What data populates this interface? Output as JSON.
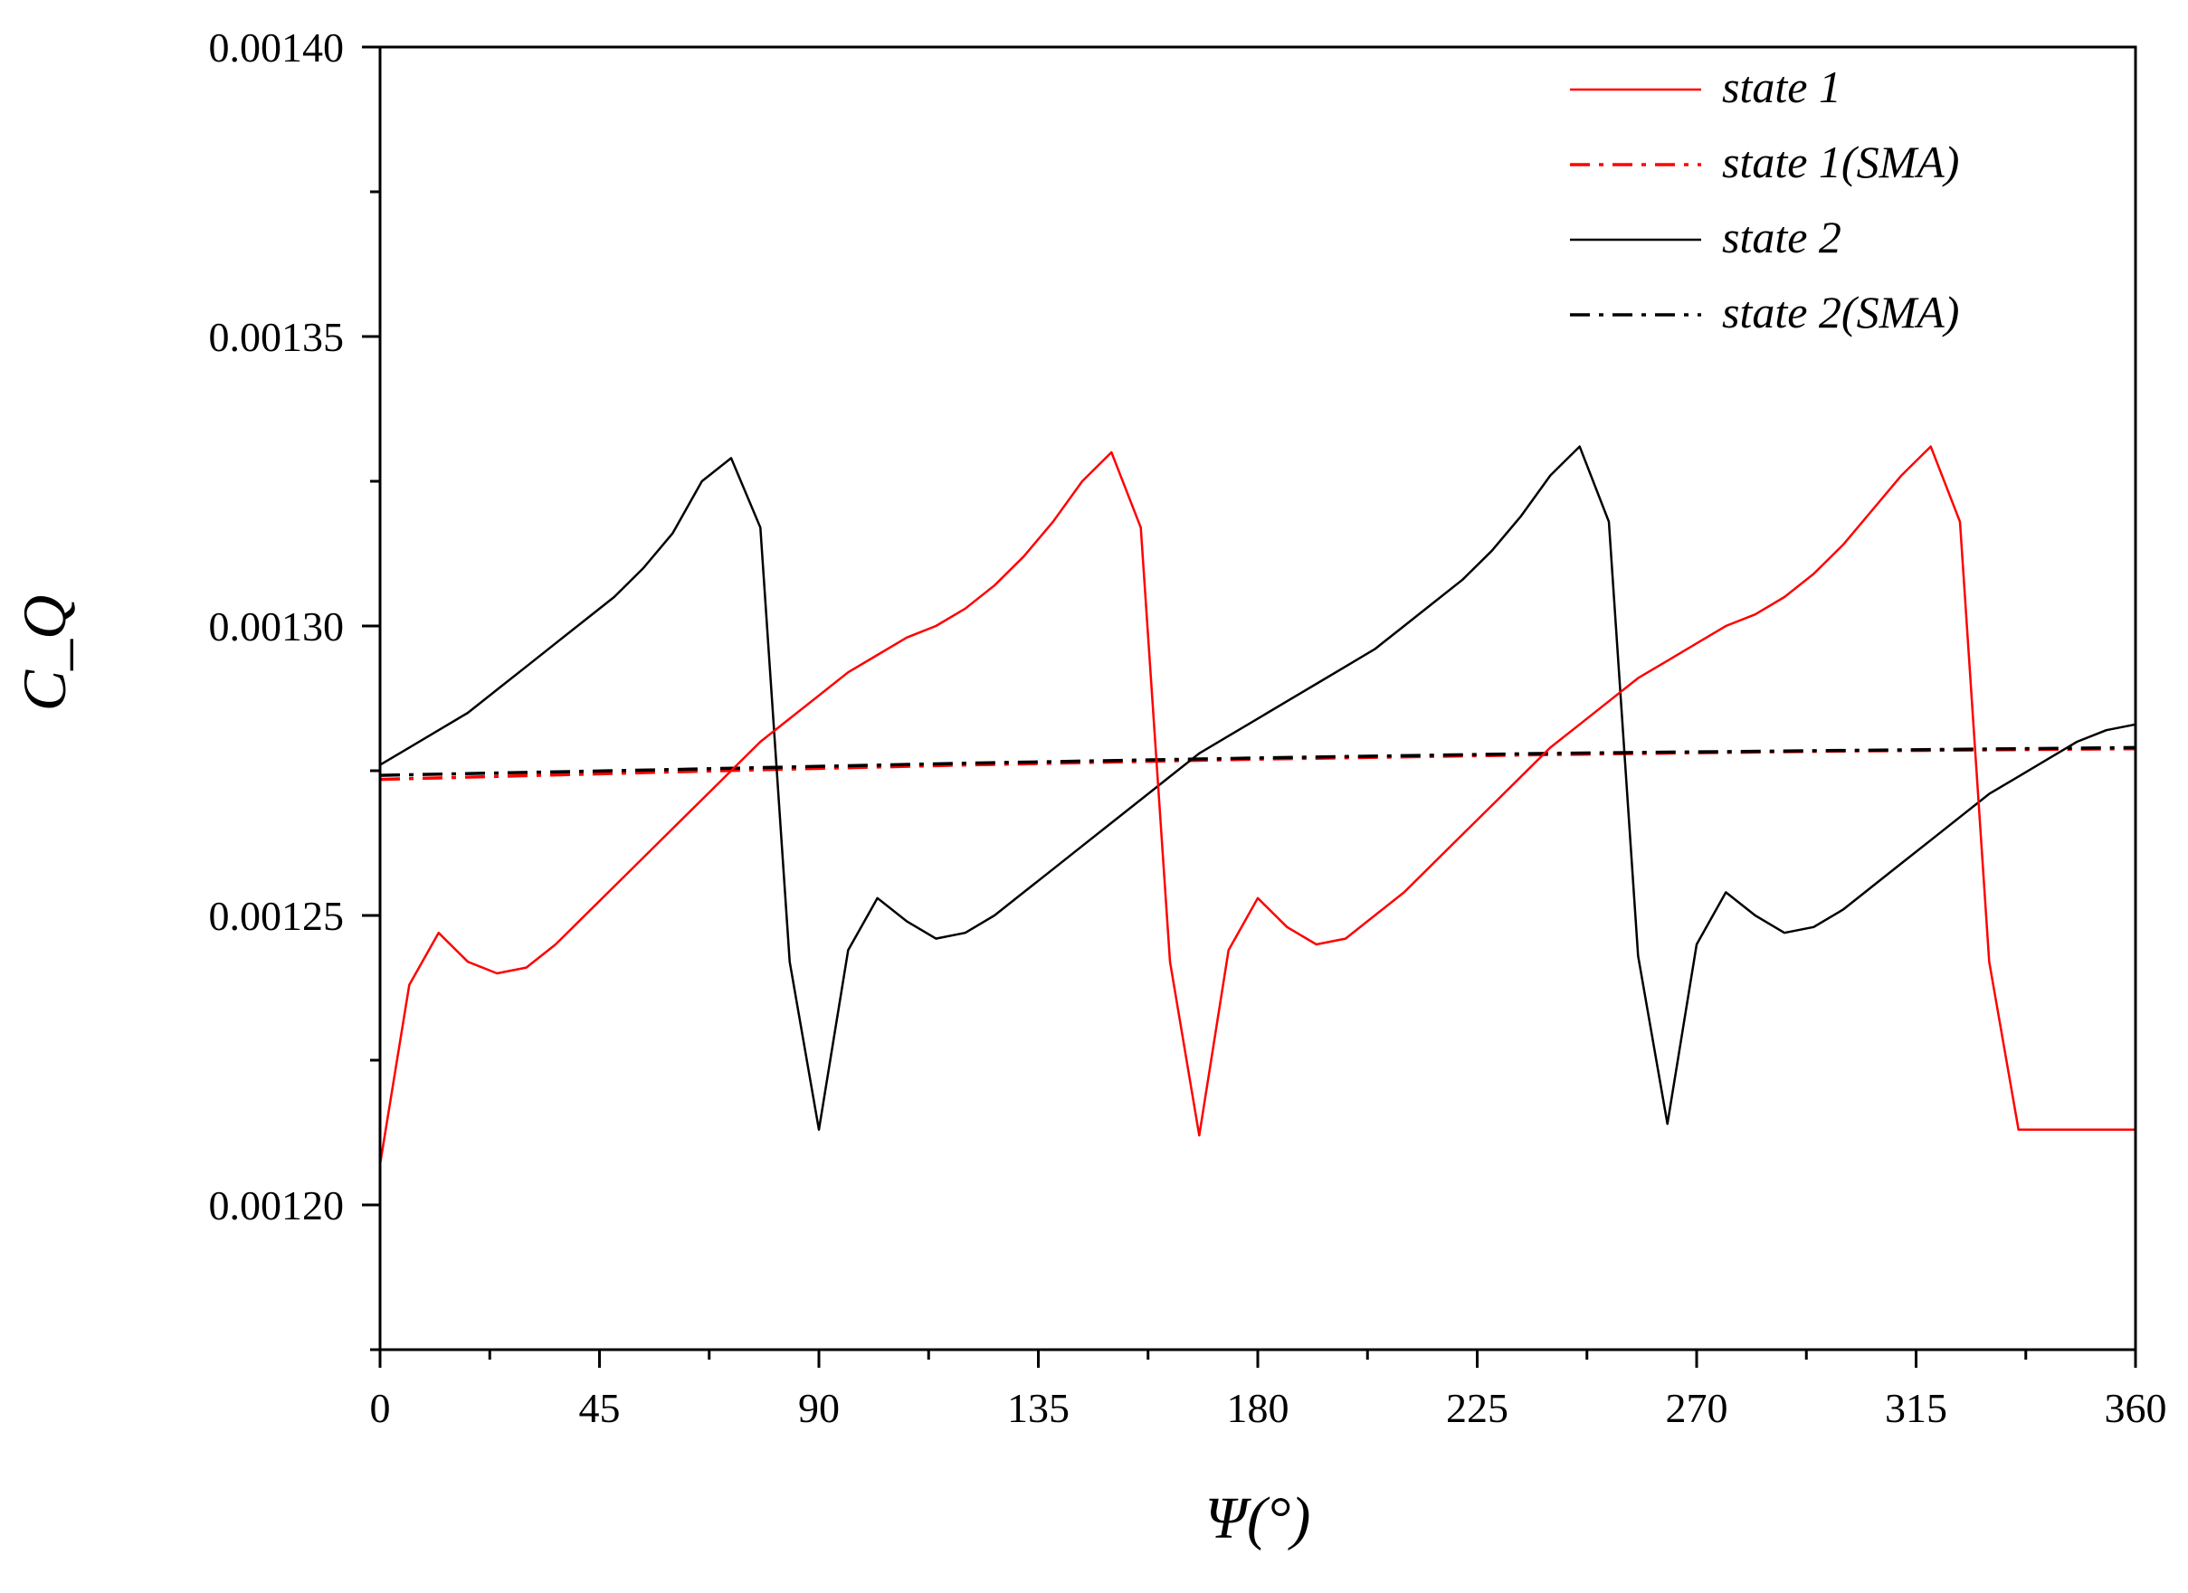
{
  "chart_data": {
    "type": "line",
    "xlabel": "Ψ(°)",
    "ylabel": "C_Q",
    "xlim": [
      0,
      360
    ],
    "ylim": [
      0.001175,
      0.0014
    ],
    "xticks": [
      "0",
      "45",
      "90",
      "135",
      "180",
      "225",
      "270",
      "315",
      "360"
    ],
    "yticks": [
      "0.00120",
      "0.00125",
      "0.00130",
      "0.00135",
      "0.00140"
    ],
    "grid": false,
    "legend_position": "top-right",
    "series": [
      {
        "name": "state 1",
        "color": "#ff0000",
        "dash": "solid",
        "x": [
          0,
          6,
          12,
          18,
          24,
          30,
          36,
          42,
          48,
          54,
          60,
          66,
          72,
          78,
          84,
          90,
          96,
          102,
          108,
          114,
          120,
          126,
          132,
          138,
          144,
          150,
          156,
          162,
          168,
          174,
          180,
          186,
          192,
          198,
          204,
          210,
          216,
          222,
          228,
          234,
          240,
          246,
          252,
          258,
          264,
          270,
          276,
          282,
          288,
          294,
          300,
          306,
          312,
          318,
          324,
          330,
          336,
          342,
          348,
          354,
          360
        ],
        "y": [
          0.001207,
          0.001238,
          0.001247,
          0.001242,
          0.00124,
          0.001241,
          0.001245,
          0.00125,
          0.001255,
          0.00126,
          0.001265,
          0.00127,
          0.001275,
          0.00128,
          0.001284,
          0.001288,
          0.001292,
          0.001295,
          0.001298,
          0.0013,
          0.001303,
          0.001307,
          0.001312,
          0.001318,
          0.001325,
          0.00133,
          0.001317,
          0.001242,
          0.001212,
          0.001244,
          0.001253,
          0.001248,
          0.001245,
          0.001246,
          0.00125,
          0.001254,
          0.001259,
          0.001264,
          0.001269,
          0.001274,
          0.001279,
          0.001283,
          0.001287,
          0.001291,
          0.001294,
          0.001297,
          0.0013,
          0.001302,
          0.001305,
          0.001309,
          0.001314,
          0.00132,
          0.001326,
          0.001331,
          0.001318,
          0.001242,
          0.001213,
          0.001213,
          0.001213,
          0.001213,
          0.001213
        ]
      },
      {
        "name": "state 1(SMA)",
        "color": "#ff0000",
        "dash": "dashdot",
        "x": [
          0,
          60,
          120,
          180,
          240,
          300,
          360
        ],
        "y": [
          0.0012735,
          0.0012748,
          0.001276,
          0.001277,
          0.0012778,
          0.0012784,
          0.0012788
        ]
      },
      {
        "name": "state 2",
        "color": "#000000",
        "dash": "solid",
        "x": [
          0,
          6,
          12,
          18,
          24,
          30,
          36,
          42,
          48,
          54,
          60,
          66,
          72,
          78,
          84,
          90,
          96,
          102,
          108,
          114,
          120,
          126,
          132,
          138,
          144,
          150,
          156,
          162,
          168,
          174,
          180,
          186,
          192,
          198,
          204,
          210,
          216,
          222,
          228,
          234,
          240,
          246,
          252,
          258,
          264,
          270,
          276,
          282,
          288,
          294,
          300,
          306,
          312,
          318,
          324,
          330,
          336,
          342,
          348,
          354,
          360
        ],
        "y": [
          0.001276,
          0.001279,
          0.001282,
          0.001285,
          0.001289,
          0.001293,
          0.001297,
          0.001301,
          0.001305,
          0.00131,
          0.001316,
          0.001325,
          0.001329,
          0.001317,
          0.001242,
          0.001213,
          0.001244,
          0.001253,
          0.001249,
          0.001246,
          0.001247,
          0.00125,
          0.001254,
          0.001258,
          0.001262,
          0.001266,
          0.00127,
          0.001274,
          0.001278,
          0.001281,
          0.001284,
          0.001287,
          0.00129,
          0.001293,
          0.001296,
          0.0013,
          0.001304,
          0.001308,
          0.001313,
          0.001319,
          0.001326,
          0.001331,
          0.001318,
          0.001243,
          0.001214,
          0.001245,
          0.001254,
          0.00125,
          0.001247,
          0.001248,
          0.001251,
          0.001255,
          0.001259,
          0.001263,
          0.001267,
          0.001271,
          0.001274,
          0.001277,
          0.00128,
          0.001282,
          0.001283
        ]
      },
      {
        "name": "state 2(SMA)",
        "color": "#000000",
        "dash": "dashdot",
        "x": [
          0,
          60,
          120,
          180,
          240,
          300,
          360
        ],
        "y": [
          0.0012742,
          0.0012752,
          0.0012763,
          0.0012772,
          0.001278,
          0.0012785,
          0.001279
        ]
      }
    ]
  }
}
